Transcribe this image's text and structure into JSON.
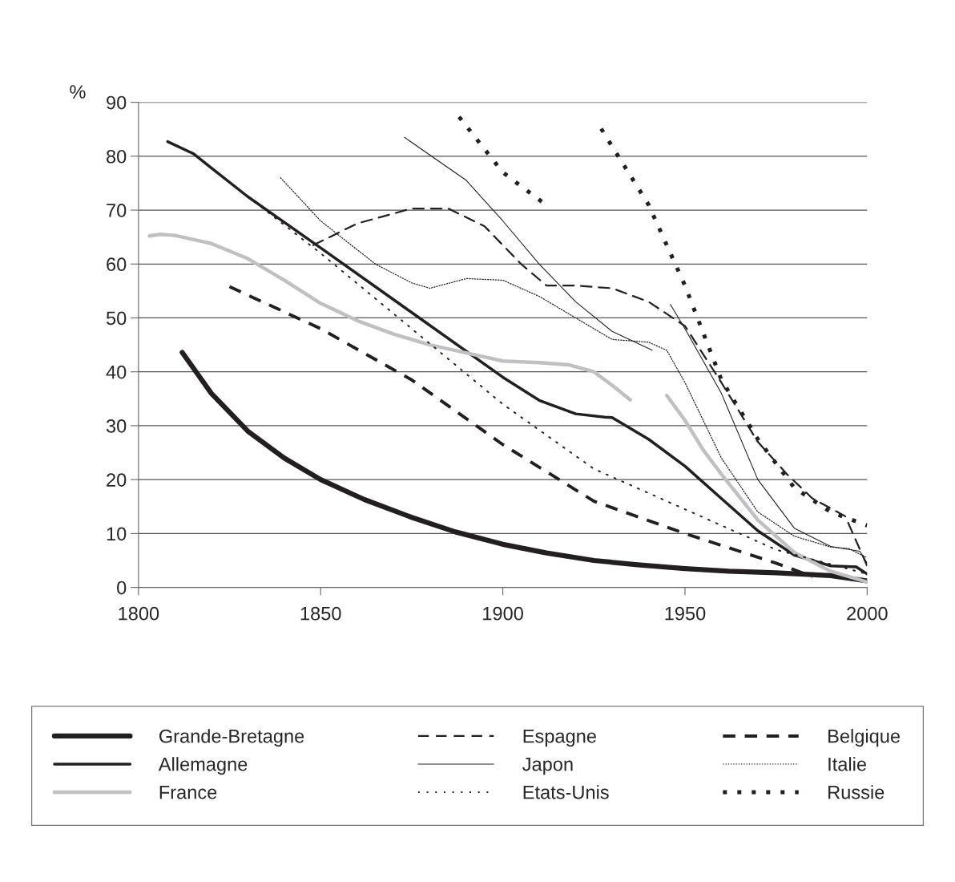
{
  "chart_data": {
    "type": "line",
    "ylabel": "%",
    "xlim": [
      1800,
      2000
    ],
    "ylim": [
      0,
      90
    ],
    "xticks": [
      1800,
      1850,
      1900,
      1950,
      2000
    ],
    "yticks": [
      0,
      10,
      20,
      30,
      40,
      50,
      60,
      70,
      80,
      90
    ],
    "grid": "y",
    "legend": "bottom",
    "series": [
      {
        "name": "Grande-Bretagne",
        "color": "#231f20",
        "line_style": "solid",
        "x": [
          1812,
          1820,
          1830,
          1840,
          1850,
          1862,
          1875,
          1887,
          1900,
          1912,
          1925,
          1937,
          1950,
          1962,
          1975,
          1990,
          2000
        ],
        "values": [
          43.6,
          36,
          29,
          24,
          20,
          16.3,
          13,
          10.3,
          8,
          6.4,
          5,
          4.2,
          3.5,
          3,
          2.7,
          2.2,
          1.2
        ]
      },
      {
        "name": "Allemagne",
        "color": "#231f20",
        "line_style": "solid",
        "x": [
          1808,
          1815,
          1830,
          1850,
          1875,
          1900,
          1910,
          1920,
          1928,
          1930,
          1940,
          1950,
          1960,
          1970,
          1980,
          1990,
          1997,
          2000
        ],
        "values": [
          82.7,
          80.5,
          72.5,
          63,
          51,
          39,
          34.7,
          32.2,
          31.6,
          31.5,
          27.5,
          22.5,
          16.5,
          10.5,
          6,
          4,
          3.8,
          2.5
        ]
      },
      {
        "name": "France",
        "color": "#c0c0c4",
        "line_style": "solid",
        "x": [
          1803,
          1806,
          1810,
          1820,
          1830,
          1840,
          1850,
          1860,
          1870,
          1880,
          1890,
          1900,
          1910,
          1918,
          1925,
          1930,
          1935,
          1940,
          1945,
          1950,
          1955,
          1960,
          1970,
          1975,
          1980,
          1990,
          2000
        ],
        "values": [
          65.2,
          65.5,
          65.3,
          63.8,
          61,
          57,
          52.7,
          49.5,
          47,
          45,
          43.5,
          42,
          41.7,
          41.3,
          40,
          37.5,
          34.8,
          null,
          35.6,
          31,
          25.5,
          21,
          12.5,
          9.5,
          6.5,
          3,
          1
        ]
      },
      {
        "name": "Espagne",
        "color": "#231f20",
        "line_style": "dashed",
        "x": [
          1848,
          1860,
          1875,
          1885,
          1895,
          1905,
          1912,
          1920,
          1930,
          1940,
          1950,
          1960,
          1970,
          1978,
          1985,
          1994,
          2000
        ],
        "values": [
          63.5,
          67.5,
          70.3,
          70.3,
          67,
          60,
          56,
          56,
          55.5,
          53,
          48.5,
          38,
          27,
          21,
          16.5,
          13.2,
          4
        ]
      },
      {
        "name": "Japon",
        "color": "#231f20",
        "line_style": "solid",
        "x": [
          1873,
          1890,
          1900,
          1910,
          1920,
          1930,
          1941,
          1943,
          1946,
          1950,
          1960,
          1970,
          1980,
          1990,
          1998,
          2000
        ],
        "values": [
          83.5,
          75.5,
          68,
          60,
          53,
          47.5,
          44,
          null,
          52.5,
          48,
          36,
          20,
          11,
          7.6,
          6.7,
          4.5
        ]
      },
      {
        "name": "Etats-Unis",
        "color": "#231f20",
        "line_style": "dotted",
        "x": [
          1830,
          1850,
          1875,
          1900,
          1925,
          1950,
          1975,
          2000
        ],
        "values": [
          72.5,
          62,
          48,
          34,
          22,
          14.5,
          7,
          2.5
        ]
      },
      {
        "name": "Belgique",
        "color": "#231f20",
        "line_style": "dashed",
        "x": [
          1825,
          1850,
          1875,
          1900,
          1925,
          1950,
          1975,
          1985
        ],
        "values": [
          55.8,
          48,
          38.5,
          26.5,
          16,
          10,
          4.5,
          2
        ]
      },
      {
        "name": "Italie",
        "color": "#231f20",
        "line_style": "dotted",
        "x": [
          1839,
          1850,
          1865,
          1875,
          1880,
          1890,
          1900,
          1910,
          1920,
          1930,
          1940,
          1945,
          1950,
          1960,
          1970,
          1980,
          1990,
          1995,
          2000
        ],
        "values": [
          76,
          68,
          60,
          56.5,
          55.5,
          57.3,
          57,
          54,
          50,
          46,
          45.5,
          44,
          38,
          24,
          14,
          9.5,
          7.5,
          7.2,
          5.5
        ]
      },
      {
        "name": "Russie",
        "color": "#231f20",
        "line_style": "dotted",
        "x": [
          1888,
          1900,
          1911,
          1919,
          1927,
          1940,
          1950,
          1960,
          1970,
          1980,
          1990,
          2000
        ],
        "values": [
          87.3,
          77,
          71.4,
          null,
          85.1,
          71,
          56,
          38.5,
          27.5,
          18.5,
          14,
          11.5
        ]
      }
    ]
  }
}
